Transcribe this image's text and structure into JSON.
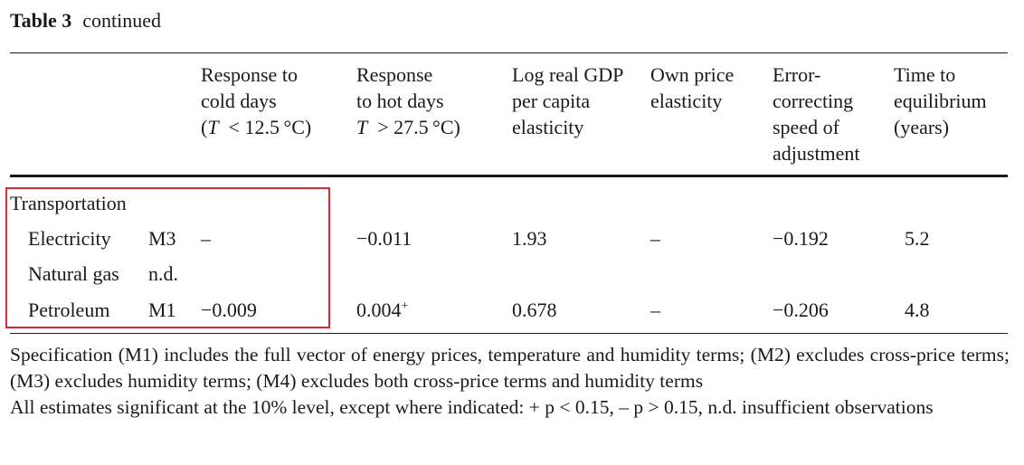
{
  "caption": {
    "label": "Table 3",
    "text": "continued"
  },
  "headers": {
    "cold": [
      "Response to",
      "cold days"
    ],
    "hot": [
      "Response",
      "to hot days"
    ],
    "gdp": [
      "Log real GDP",
      "per capita",
      "elasticity"
    ],
    "price": [
      "Own price",
      "elasticity"
    ],
    "ec": [
      "Error-",
      "correcting",
      "speed of",
      "adjustment"
    ],
    "time": [
      "Time to",
      "equilibrium",
      "(years)"
    ]
  },
  "group": "Transportation",
  "rows": [
    {
      "name": "Electricity",
      "spec": "M3",
      "cold": "–",
      "hot": "−0.011",
      "hot_sup": "",
      "gdp": "1.93",
      "price": "–",
      "ec": "−0.192",
      "time": "5.2"
    },
    {
      "name": "Natural gas",
      "spec": "n.d.",
      "cold": "",
      "hot": "",
      "hot_sup": "",
      "gdp": "",
      "price": "",
      "ec": "",
      "time": ""
    },
    {
      "name": "Petroleum",
      "spec": "M1",
      "cold": "−0.009",
      "hot": "0.004",
      "hot_sup": "+",
      "gdp": "0.678",
      "price": "–",
      "ec": "−0.206",
      "time": "4.8"
    }
  ],
  "notes": [
    "Specification (M1) includes the full vector of energy prices, temperature and humidity terms; (M2) excludes cross-price terms; (M3) excludes humidity terms; (M4) excludes both cross-price terms and humidity terms",
    "All estimates significant at the 10% level, except where indicated: + p < 0.15, – p > 0.15, n.d. insufficient observations"
  ],
  "highlight_color": "#d62b36"
}
